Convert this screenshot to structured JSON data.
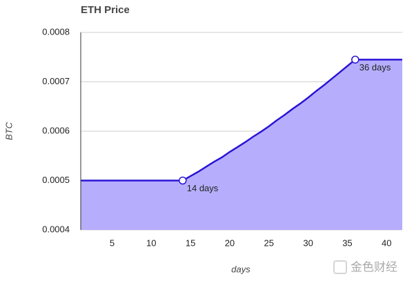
{
  "chart_data": {
    "type": "area",
    "title": "ETH Price",
    "y_label": "BTC",
    "x_label": "days",
    "x": [
      1,
      2,
      3,
      4,
      5,
      6,
      7,
      8,
      9,
      10,
      11,
      12,
      13,
      14,
      15,
      16,
      17,
      18,
      19,
      20,
      21,
      22,
      23,
      24,
      25,
      26,
      27,
      28,
      29,
      30,
      31,
      32,
      33,
      34,
      35,
      36,
      37,
      38,
      39,
      40,
      41,
      42
    ],
    "values": [
      0.0005,
      0.0005,
      0.0005,
      0.0005,
      0.0005,
      0.0005,
      0.0005,
      0.0005,
      0.0005,
      0.0005,
      0.0005,
      0.0005,
      0.0005,
      0.0005,
      0.000509,
      0.000518,
      0.000528,
      0.000538,
      0.000547,
      0.000558,
      0.000568,
      0.000578,
      0.000589,
      0.000599,
      0.00061,
      0.000622,
      0.000633,
      0.000645,
      0.000656,
      0.000668,
      0.000681,
      0.000693,
      0.000706,
      0.000719,
      0.000732,
      0.000745,
      0.000745,
      0.000745,
      0.000745,
      0.000745,
      0.000745,
      0.000745
    ],
    "line_color": "#2a14d6",
    "fill_color": "#b6aefc",
    "xlim": [
      1,
      42
    ],
    "xticks": [
      5,
      10,
      15,
      20,
      25,
      30,
      35,
      40
    ],
    "ylim": [
      0.0004,
      0.0008
    ],
    "yticks": [
      0.0004,
      0.0005,
      0.0006,
      0.0007,
      0.0008
    ],
    "grid": true,
    "annotations": [
      {
        "text": "14 days",
        "x": 14,
        "y": 0.0005
      },
      {
        "text": "36 days",
        "x": 36,
        "y": 0.000745
      }
    ],
    "watermark": "金色财经"
  }
}
